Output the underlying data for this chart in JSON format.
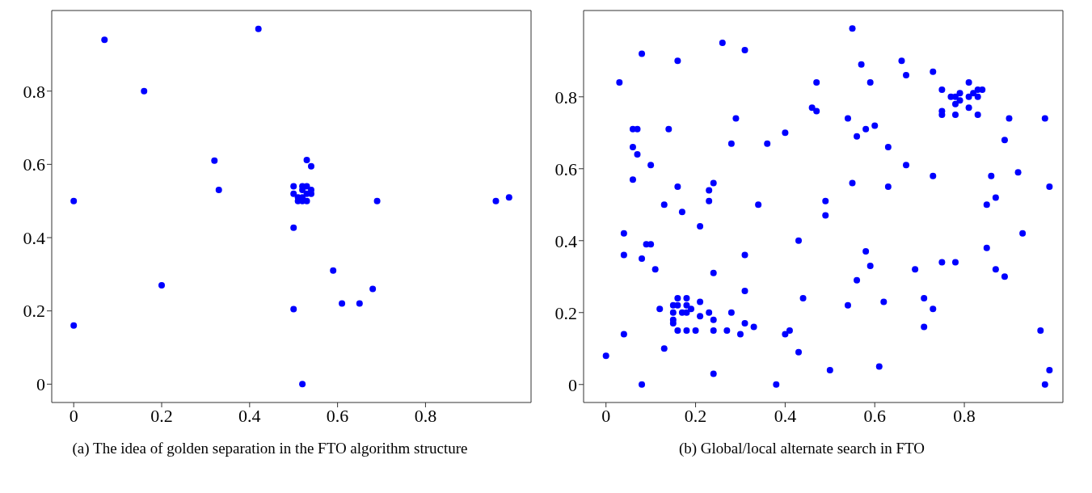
{
  "chart_data": [
    {
      "type": "scatter",
      "title": "(a) The idea of golden separation in the FTO algorithm structure",
      "marker": "circle",
      "grid": false,
      "xlim": [
        -0.05,
        1.04
      ],
      "ylim": [
        -0.05,
        1.02
      ],
      "xticks": [
        0,
        0.2,
        0.4,
        0.6,
        0.8
      ],
      "yticks": [
        0,
        0.2,
        0.4,
        0.6,
        0.8
      ],
      "series": [
        {
          "color": "#0000ff",
          "x": [
            0,
            0,
            0.07,
            0.16,
            0.2,
            0.32,
            0.33,
            0.42,
            0.5,
            0.5,
            0.5,
            0.5,
            0.51,
            0.51,
            0.52,
            0.52,
            0.52,
            0.52,
            0.53,
            0.53,
            0.53,
            0.53,
            0.54,
            0.54,
            0.54,
            0.52,
            0.59,
            0.61,
            0.65,
            0.68,
            0.69,
            0.96,
            0.99
          ],
          "values": [
            0.5,
            0.16,
            0.94,
            0.8,
            0.27,
            0.61,
            0.53,
            0.97,
            0.54,
            0.52,
            0.427,
            0.205,
            0.51,
            0.5,
            0.51,
            0.5,
            0.54,
            0.53,
            0.54,
            0.52,
            0.5,
            0.612,
            0.595,
            0.53,
            0.52,
            0,
            0.31,
            0.22,
            0.22,
            0.26,
            0.5,
            0.5,
            0.51
          ]
        }
      ]
    },
    {
      "type": "scatter",
      "title": "(b) Global/local alternate search in FTO",
      "marker": "circle",
      "grid": false,
      "xlim": [
        -0.05,
        1.02
      ],
      "ylim": [
        -0.05,
        1.04
      ],
      "xticks": [
        0,
        0.2,
        0.4,
        0.6,
        0.8
      ],
      "yticks": [
        0,
        0.2,
        0.4,
        0.6,
        0.8
      ],
      "series": [
        {
          "color": "#0000ff",
          "x": [
            0,
            0.03,
            0.04,
            0.04,
            0.04,
            0.06,
            0.07,
            0.06,
            0.07,
            0.06,
            0.08,
            0.08,
            0.08,
            0.09,
            0.1,
            0.1,
            0.11,
            0.12,
            0.13,
            0.13,
            0.14,
            0.15,
            0.15,
            0.15,
            0.15,
            0.16,
            0.16,
            0.16,
            0.16,
            0.16,
            0.17,
            0.17,
            0.18,
            0.18,
            0.18,
            0.18,
            0.19,
            0.2,
            0.21,
            0.21,
            0.21,
            0.23,
            0.23,
            0.23,
            0.24,
            0.24,
            0.24,
            0.24,
            0.24,
            0.26,
            0.27,
            0.28,
            0.28,
            0.29,
            0.3,
            0.31,
            0.31,
            0.31,
            0.31,
            0.33,
            0.34,
            0.36,
            0.38,
            0.4,
            0.4,
            0.41,
            0.43,
            0.43,
            0.44,
            0.55,
            0.57,
            0.66,
            0.67,
            0.73,
            0.47,
            0.59,
            0.81,
            0.75,
            0.77,
            0.78,
            0.79,
            0.79,
            0.78,
            0.81,
            0.82,
            0.83,
            0.84,
            0.83,
            0.81,
            0.75,
            0.75,
            0.78,
            0.83,
            0.46,
            0.47,
            0.54,
            0.9,
            0.98,
            0.58,
            0.6,
            0.56,
            0.89,
            0.63,
            0.67,
            0.73,
            0.86,
            0.92,
            0.55,
            0.63,
            0.99,
            0.49,
            0.49,
            0.87,
            0.85,
            0.93,
            0.58,
            0.85,
            0.59,
            0.69,
            0.75,
            0.78,
            0.87,
            0.89,
            0.56,
            0.54,
            0.62,
            0.71,
            0.73,
            0.71,
            0.97,
            0.5,
            0.61,
            0.99,
            0.98
          ],
          "values": [
            0.08,
            0.84,
            0.42,
            0.36,
            0.14,
            0.71,
            0.71,
            0.66,
            0.64,
            0.57,
            0.92,
            0.35,
            0,
            0.39,
            0.39,
            0.61,
            0.32,
            0.21,
            0.5,
            0.1,
            0.71,
            0.22,
            0.2,
            0.18,
            0.17,
            0.9,
            0.55,
            0.24,
            0.22,
            0.15,
            0.48,
            0.2,
            0.24,
            0.22,
            0.2,
            0.15,
            0.21,
            0.15,
            0.44,
            0.23,
            0.19,
            0.54,
            0.51,
            0.2,
            0.56,
            0.31,
            0.18,
            0.15,
            0.03,
            0.95,
            0.15,
            0.67,
            0.2,
            0.74,
            0.14,
            0.93,
            0.36,
            0.26,
            0.17,
            0.16,
            0.5,
            0.67,
            0,
            0.7,
            0.14,
            0.15,
            0.4,
            0.09,
            0.24,
            0.99,
            0.89,
            0.9,
            0.86,
            0.87,
            0.84,
            0.84,
            0.84,
            0.82,
            0.8,
            0.8,
            0.81,
            0.79,
            0.78,
            0.8,
            0.81,
            0.82,
            0.82,
            0.8,
            0.77,
            0.76,
            0.75,
            0.75,
            0.75,
            0.77,
            0.76,
            0.74,
            0.74,
            0.74,
            0.71,
            0.72,
            0.69,
            0.68,
            0.66,
            0.61,
            0.58,
            0.58,
            0.59,
            0.56,
            0.55,
            0.55,
            0.51,
            0.47,
            0.52,
            0.5,
            0.42,
            0.37,
            0.38,
            0.33,
            0.32,
            0.34,
            0.34,
            0.32,
            0.3,
            0.29,
            0.22,
            0.23,
            0.24,
            0.21,
            0.16,
            0.15,
            0.04,
            0.05,
            0.04,
            0
          ]
        }
      ]
    }
  ]
}
